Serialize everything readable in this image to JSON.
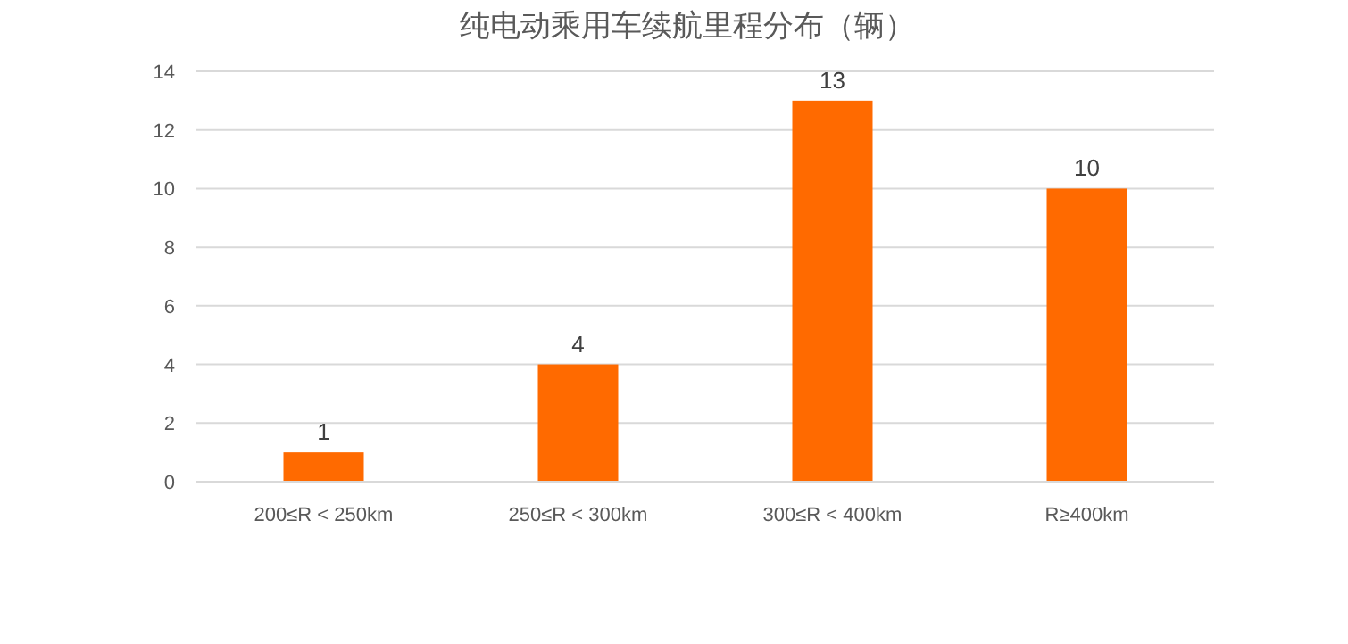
{
  "chart_data": {
    "type": "bar",
    "title": "纯电动乘用车续航里程分布（辆）",
    "categories": [
      "200≤R < 250km",
      "250≤R < 300km",
      "300≤R < 400km",
      "R≥400km"
    ],
    "values": [
      1,
      4,
      13,
      10
    ],
    "color": "#ff6a00",
    "ylim": [
      0,
      14
    ],
    "yticks": [
      0,
      2,
      4,
      6,
      8,
      10,
      12,
      14
    ],
    "grid": "y",
    "data_labels": true
  }
}
